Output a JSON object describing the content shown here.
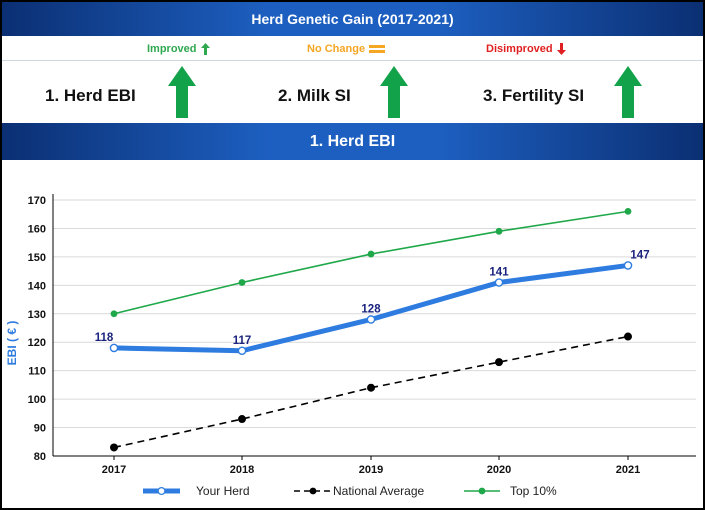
{
  "header": {
    "title": "Herd Genetic Gain (2017-2021)"
  },
  "legend_status": {
    "improved": {
      "label": "Improved",
      "color": "#2fa84f"
    },
    "no_change": {
      "label": "No Change",
      "color": "#f5a623"
    },
    "disimproved": {
      "label": "Disimproved",
      "color": "#e02020"
    }
  },
  "metrics": [
    {
      "label": "1. Herd EBI",
      "status": "improved"
    },
    {
      "label": "2. Milk SI",
      "status": "improved"
    },
    {
      "label": "3. Fertility SI",
      "status": "improved"
    }
  ],
  "section": {
    "title": "1. Herd EBI"
  },
  "chart_data": {
    "type": "line",
    "x": [
      "2017",
      "2018",
      "2019",
      "2020",
      "2021"
    ],
    "ylabel": "EBI ( € )",
    "ylim": [
      80,
      170
    ],
    "yticks": [
      80,
      90,
      100,
      110,
      120,
      130,
      140,
      150,
      160,
      170
    ],
    "grid": true,
    "legend_position": "bottom",
    "series": [
      {
        "name": "Your Herd",
        "values": [
          118,
          117,
          128,
          141,
          147
        ],
        "color": "#2f7ce0",
        "labels": [
          "118",
          "117",
          "128",
          "141",
          "147"
        ]
      },
      {
        "name": "National Average",
        "values": [
          83,
          93,
          104,
          113,
          122
        ],
        "color": "#000000",
        "dashed": true
      },
      {
        "name": "Top 10%",
        "values": [
          130,
          141,
          151,
          159,
          166
        ],
        "color": "#1fa84a"
      }
    ]
  }
}
